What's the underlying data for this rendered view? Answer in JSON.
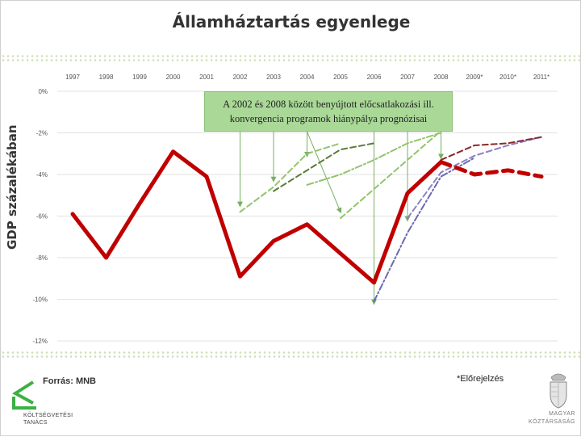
{
  "slide": {
    "title": "Államháztartás egyenlege",
    "source": "Forrás: MNB",
    "footnote": "*Előrejelzés",
    "logo_left": "költségvetési-tanács-logo",
    "logo_left_text": [
      "KÖLTSÉGVETÉSI",
      "TANÁCS"
    ],
    "logo_right": "hungarian-coat-of-arms",
    "logo_right_text": [
      "MAGYAR",
      "KÖZTÁRSASÁG"
    ]
  },
  "colors": {
    "actual": "#c00000",
    "green_light": "#92c46c",
    "green_dark": "#5a7a3a",
    "maroon": "#8b2a2a",
    "purple": "#8a80c8",
    "annotation_box": "#a9d897",
    "arrow": "#78b060",
    "grid": "#d8d8d8"
  },
  "chart_data": {
    "type": "line",
    "title": "Államháztartás egyenlege",
    "ylabel": "GDP százalékában",
    "xlabel": "",
    "categories": [
      "1997",
      "1998",
      "1999",
      "2000",
      "2001",
      "2002",
      "2003",
      "2004",
      "2005",
      "2006",
      "2007",
      "2008",
      "2009*",
      "2010*",
      "2011*"
    ],
    "y_tick_labels": [
      "0%",
      "-2%",
      "-4%",
      "-6%",
      "-8%",
      "-10%",
      "-12%"
    ],
    "ylim": [
      -12,
      0
    ],
    "x_axis_position": "top",
    "grid": true,
    "annotation": {
      "text_lines": [
        "A 2002 és 2008 között benyújtott előcsatlakozási ill.",
        "konvergencia programok hiánypálya prognózisai"
      ]
    },
    "series": [
      {
        "role": "actual",
        "style": "solid-thick",
        "color": "#c00000",
        "x": [
          "1997",
          "1998",
          "1999",
          "2000",
          "2001",
          "2002",
          "2003",
          "2004",
          "2005",
          "2006",
          "2007",
          "2008"
        ],
        "values": [
          -5.9,
          -8.0,
          -5.4,
          -2.9,
          -4.1,
          -8.9,
          -7.2,
          -6.4,
          -7.8,
          -9.2,
          -4.9,
          -3.4
        ]
      },
      {
        "role": "actual-forecast",
        "style": "dashed-thick",
        "color": "#c00000",
        "x": [
          "2008",
          "2009*",
          "2010*",
          "2011*"
        ],
        "values": [
          -3.4,
          -4.0,
          -3.8,
          -4.1
        ]
      },
      {
        "role": "program-2002",
        "style": "dashed",
        "color": "#92c46c",
        "x": [
          "2002",
          "2003",
          "2004",
          "2005"
        ],
        "values": [
          -5.8,
          -4.6,
          -3.0,
          -2.5
        ]
      },
      {
        "role": "program-2003",
        "style": "dashed",
        "color": "#5a7a3a",
        "x": [
          "2003",
          "2004",
          "2005",
          "2006"
        ],
        "values": [
          -4.8,
          -3.8,
          -2.8,
          -2.5
        ]
      },
      {
        "role": "program-2004",
        "style": "dash-dot",
        "color": "#92c46c",
        "x": [
          "2004",
          "2005",
          "2006",
          "2007",
          "2008"
        ],
        "values": [
          -4.5,
          -4.0,
          -3.3,
          -2.5,
          -2.0
        ]
      },
      {
        "role": "program-2005",
        "style": "dashed",
        "color": "#92c46c",
        "x": [
          "2005",
          "2006",
          "2007",
          "2008"
        ],
        "values": [
          -6.1,
          -4.7,
          -3.3,
          -1.9
        ]
      },
      {
        "role": "program-2006",
        "style": "dash-dot",
        "color": "#6a6ab0",
        "x": [
          "2006",
          "2007",
          "2008",
          "2009*"
        ],
        "values": [
          -10.1,
          -6.8,
          -4.1,
          -3.2
        ]
      },
      {
        "role": "program-2007",
        "style": "dashed",
        "color": "#8a80c8",
        "x": [
          "2007",
          "2008",
          "2009*",
          "2010*",
          "2011*"
        ],
        "values": [
          -6.1,
          -3.9,
          -3.1,
          -2.6,
          -2.2
        ]
      },
      {
        "role": "program-2008",
        "style": "dashed",
        "color": "#8b2a2a",
        "x": [
          "2008",
          "2009*",
          "2010*",
          "2011*"
        ],
        "values": [
          -3.3,
          -2.6,
          -2.5,
          -2.2
        ]
      }
    ],
    "arrows": [
      {
        "from_year": "2002",
        "to_year": "2002",
        "to_value": -5.5
      },
      {
        "from_year": "2003",
        "to_year": "2003",
        "to_value": -4.3
      },
      {
        "from_year": "2004",
        "to_year": "2004",
        "to_value": -3.1
      },
      {
        "from_year": "2004",
        "to_year": "2005",
        "to_value": -5.8
      },
      {
        "from_year": "2006",
        "to_year": "2006",
        "to_value": -10.2
      },
      {
        "from_year": "2007",
        "to_year": "2007",
        "to_value": -6.2
      },
      {
        "from_year": "2008",
        "to_year": "2008",
        "to_value": -3.2
      }
    ]
  }
}
